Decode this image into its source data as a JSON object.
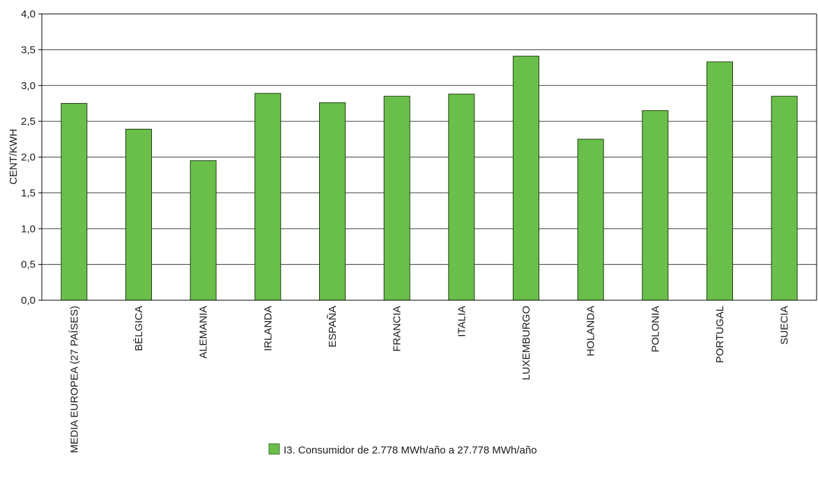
{
  "chart_data": {
    "type": "bar",
    "ylabel": "CENT/KWH",
    "xlabel": "",
    "title": "",
    "ylim": [
      0,
      4.0
    ],
    "yticks": [
      "0,0",
      "0,5",
      "1,0",
      "1,5",
      "2,0",
      "2,5",
      "3,0",
      "3,5",
      "4,0"
    ],
    "grid": true,
    "legend_position": "bottom-center",
    "categories": [
      "MEDIA EUROPEA (27 PAÍSES)",
      "BÉLGICA",
      "ALEMANIA",
      "IRLANDA",
      "ESPAÑA",
      "FRANCIA",
      "ITALIA",
      "LUXEMBURGO",
      "HOLANDA",
      "POLONIA",
      "PORTUGAL",
      "SUECIA"
    ],
    "series": [
      {
        "name": "I3. Consumidor de 2.778 MWh/año a 27.778 MWh/año",
        "color": "#6abf4b",
        "values": [
          2.75,
          2.39,
          1.95,
          2.89,
          2.76,
          2.85,
          2.88,
          3.41,
          2.25,
          2.65,
          3.33,
          2.85
        ]
      }
    ]
  }
}
